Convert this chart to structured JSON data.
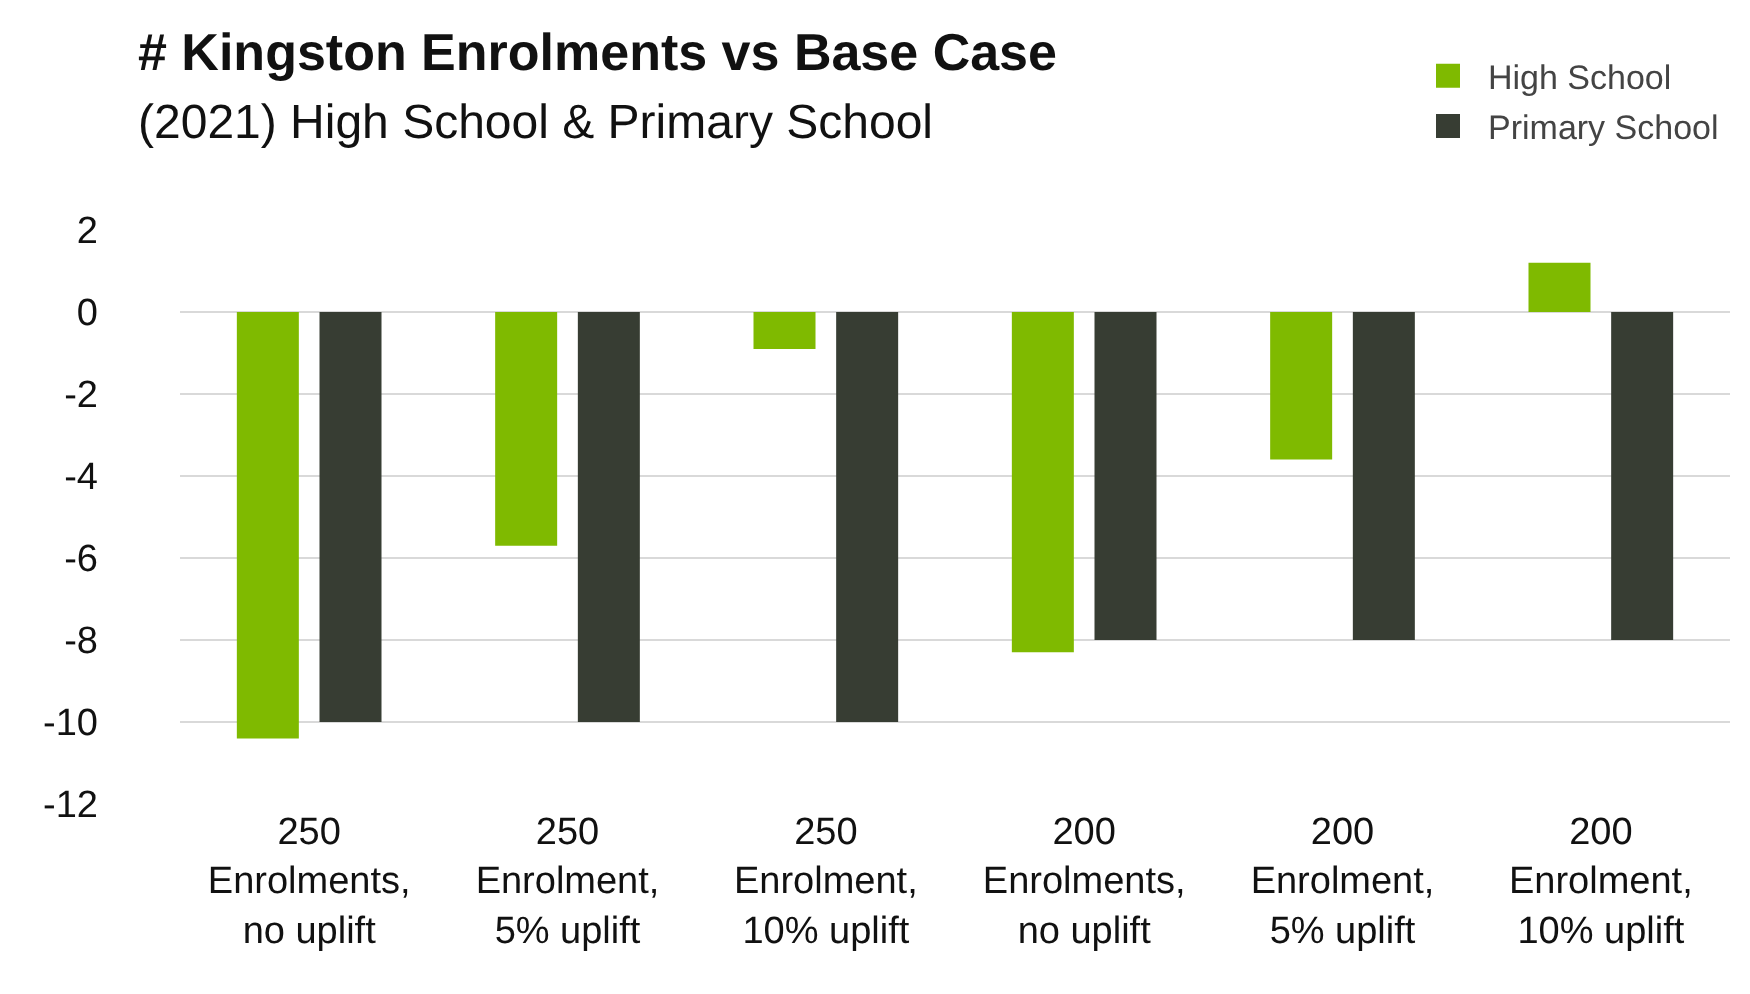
{
  "chart_data": {
    "type": "bar",
    "title": "# Kingston Enrolments vs Base Case",
    "subtitle": "(2021) High School & Primary School",
    "categories": [
      "250\nEnrolments,\nno uplift",
      "250\nEnrolment,\n5% uplift",
      "250\nEnrolment,\n10% uplift",
      "200\nEnrolments,\nno uplift",
      "200\nEnrolment,\n5% uplift",
      "200\nEnrolment,\n10% uplift"
    ],
    "series": [
      {
        "name": "High School",
        "color": "#7fba00",
        "values": [
          -10.4,
          -5.7,
          -0.9,
          -8.3,
          -3.6,
          1.2
        ]
      },
      {
        "name": "Primary School",
        "color": "#373d33",
        "values": [
          -10,
          -10,
          -10,
          -8,
          -8,
          -8
        ]
      }
    ],
    "ylim": [
      -12,
      2
    ],
    "yticks": [
      -12,
      -10,
      -8,
      -6,
      -4,
      -2,
      0,
      2
    ],
    "grid": "y",
    "legend": "top right"
  }
}
